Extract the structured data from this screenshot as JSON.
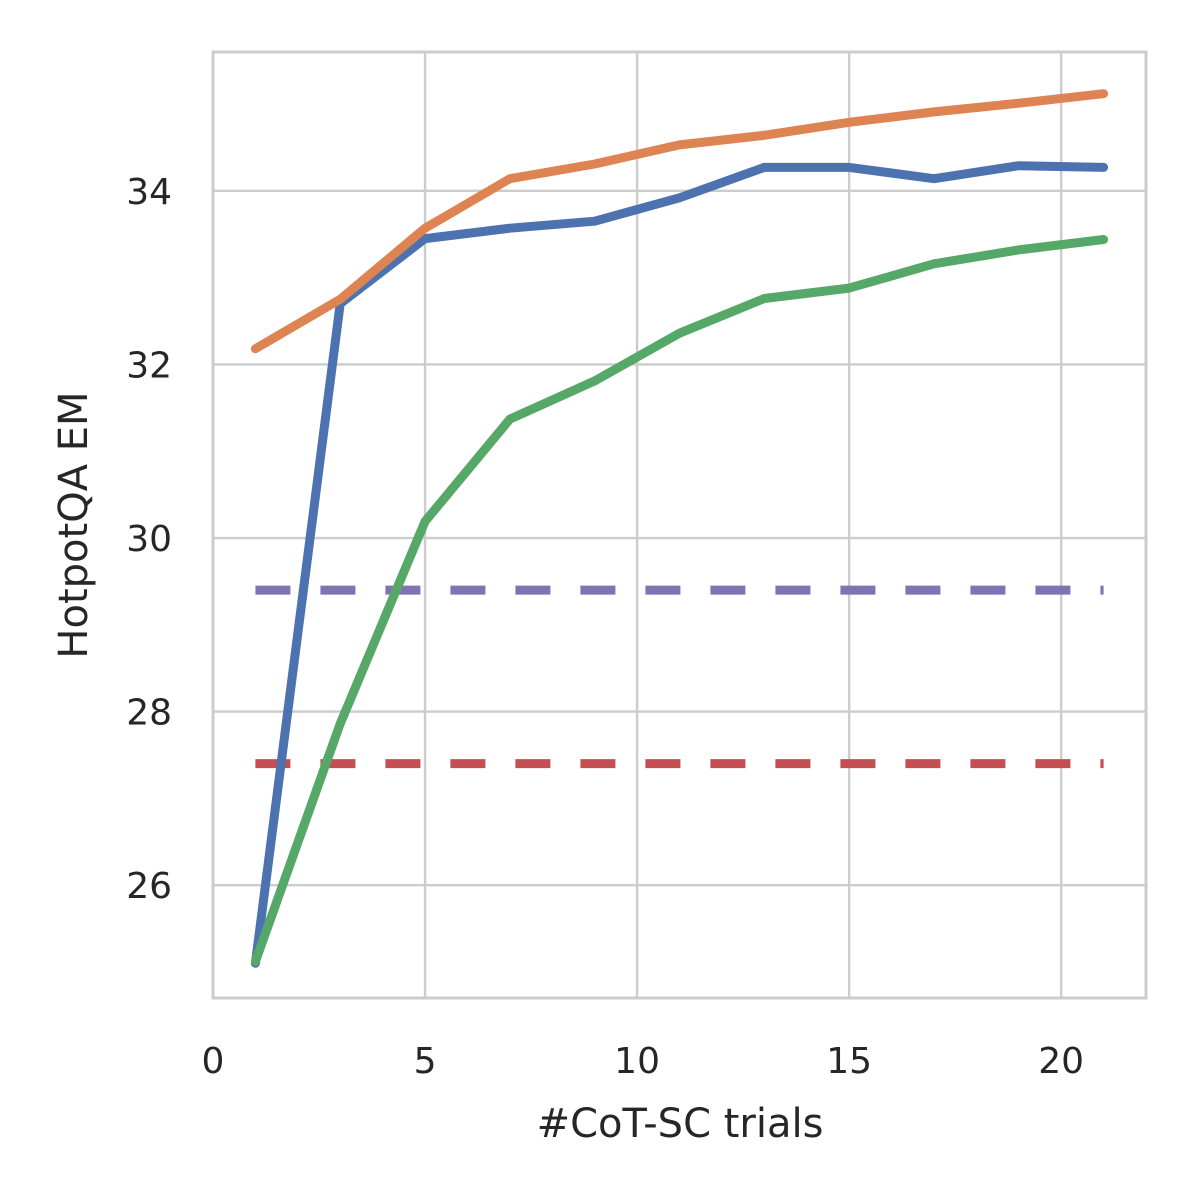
{
  "chart_data": {
    "type": "line",
    "title": "",
    "xlabel": "#CoT-SC trials",
    "ylabel": "HotpotQA EM",
    "xlim": [
      0,
      22
    ],
    "ylim": [
      24.7,
      35.6
    ],
    "xticks": [
      0,
      5,
      10,
      15,
      20
    ],
    "yticks": [
      26,
      28,
      30,
      32,
      34
    ],
    "grid": true,
    "x": [
      1,
      3,
      5,
      7,
      9,
      11,
      13,
      15,
      17,
      19,
      21
    ],
    "series": [
      {
        "name": "blue",
        "color": "#4c72b0",
        "values": [
          25.1,
          32.7,
          33.45,
          33.57,
          33.65,
          33.92,
          34.27,
          34.27,
          34.14,
          34.29,
          34.27
        ]
      },
      {
        "name": "orange",
        "color": "#dd8452",
        "values": [
          32.18,
          32.75,
          33.57,
          34.14,
          34.31,
          34.53,
          34.64,
          34.79,
          34.91,
          35.01,
          35.12
        ]
      },
      {
        "name": "green",
        "color": "#55a868",
        "values": [
          25.12,
          27.86,
          30.19,
          31.37,
          31.81,
          32.36,
          32.76,
          32.88,
          33.16,
          33.32,
          33.44
        ]
      }
    ],
    "reference_lines": [
      {
        "name": "purple-dashed",
        "color": "#8172b3",
        "y": 29.4,
        "x_range": [
          1,
          21
        ]
      },
      {
        "name": "red-dashed",
        "color": "#c44e52",
        "y": 27.4,
        "x_range": [
          1,
          21
        ]
      }
    ]
  }
}
